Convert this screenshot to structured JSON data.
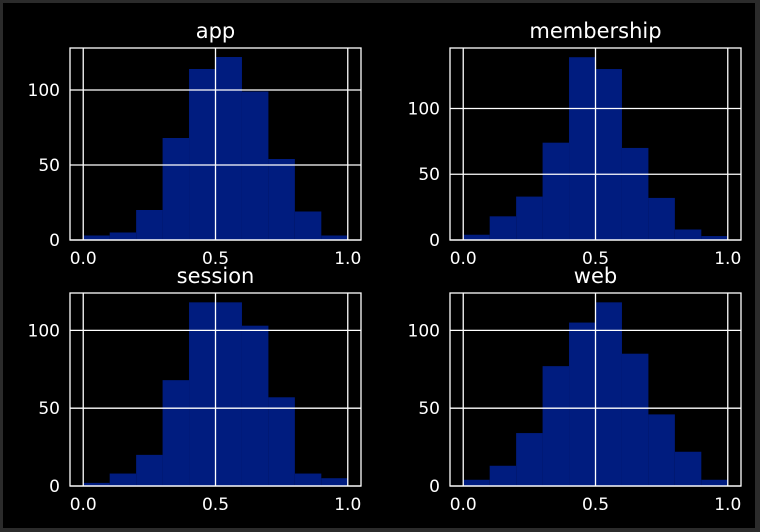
{
  "colors": {
    "background": "#000000",
    "window_border": "#2b2b2b",
    "bar_fill": "#001c7f",
    "grid": "#ffffff",
    "spine": "#ffffff",
    "text": "#ffffff"
  },
  "chart_data": [
    {
      "type": "bar",
      "title": "app",
      "bin_edges": [
        0.0,
        0.1,
        0.2,
        0.3,
        0.4,
        0.5,
        0.6,
        0.7,
        0.8,
        0.9,
        1.0
      ],
      "values": [
        3,
        5,
        20,
        68,
        114,
        122,
        99,
        54,
        19,
        3
      ],
      "xticks": [
        "0.0",
        "0.5",
        "1.0"
      ],
      "xtick_values": [
        0.0,
        0.5,
        1.0
      ],
      "yticks": [
        "0",
        "50",
        "100"
      ],
      "ytick_values": [
        0,
        50,
        100
      ],
      "xlim": [
        -0.05,
        1.05
      ],
      "ylim": [
        0,
        128
      ],
      "grid": true
    },
    {
      "type": "bar",
      "title": "membership",
      "bin_edges": [
        0.0,
        0.1,
        0.2,
        0.3,
        0.4,
        0.5,
        0.6,
        0.7,
        0.8,
        0.9,
        1.0
      ],
      "values": [
        4,
        18,
        33,
        74,
        139,
        130,
        70,
        32,
        8,
        3
      ],
      "xticks": [
        "0.0",
        "0.5",
        "1.0"
      ],
      "xtick_values": [
        0.0,
        0.5,
        1.0
      ],
      "yticks": [
        "0",
        "50",
        "100"
      ],
      "ytick_values": [
        0,
        50,
        100
      ],
      "xlim": [
        -0.05,
        1.05
      ],
      "ylim": [
        0,
        146
      ],
      "grid": true
    },
    {
      "type": "bar",
      "title": "session",
      "bin_edges": [
        0.0,
        0.1,
        0.2,
        0.3,
        0.4,
        0.5,
        0.6,
        0.7,
        0.8,
        0.9,
        1.0
      ],
      "values": [
        2,
        8,
        20,
        68,
        118,
        118,
        103,
        57,
        8,
        5
      ],
      "xticks": [
        "0.0",
        "0.5",
        "1.0"
      ],
      "xtick_values": [
        0.0,
        0.5,
        1.0
      ],
      "yticks": [
        "0",
        "50",
        "100"
      ],
      "ytick_values": [
        0,
        50,
        100
      ],
      "xlim": [
        -0.05,
        1.05
      ],
      "ylim": [
        0,
        124
      ],
      "grid": true
    },
    {
      "type": "bar",
      "title": "web",
      "bin_edges": [
        0.0,
        0.1,
        0.2,
        0.3,
        0.4,
        0.5,
        0.6,
        0.7,
        0.8,
        0.9,
        1.0
      ],
      "values": [
        4,
        13,
        34,
        77,
        105,
        118,
        85,
        46,
        22,
        4
      ],
      "xticks": [
        "0.0",
        "0.5",
        "1.0"
      ],
      "xtick_values": [
        0.0,
        0.5,
        1.0
      ],
      "yticks": [
        "0",
        "50",
        "100"
      ],
      "ytick_values": [
        0,
        50,
        100
      ],
      "xlim": [
        -0.05,
        1.05
      ],
      "ylim": [
        0,
        124
      ],
      "grid": true
    }
  ]
}
